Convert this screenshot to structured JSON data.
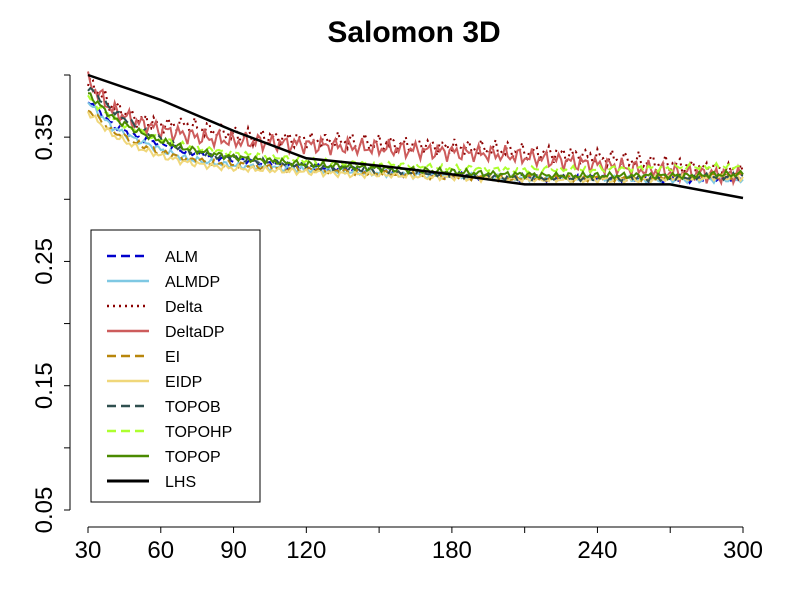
{
  "chart_data": {
    "type": "line",
    "title": "Salomon 3D",
    "xlabel": "",
    "ylabel": "",
    "xlim": [
      30,
      300
    ],
    "ylim": [
      0.05,
      0.4
    ],
    "x_ticks": [
      30,
      60,
      90,
      120,
      150,
      180,
      210,
      240,
      270,
      300
    ],
    "x_tick_labels": [
      "30",
      "60",
      "90",
      "120",
      "",
      "180",
      "",
      "240",
      "",
      "300"
    ],
    "y_ticks": [
      0.05,
      0.1,
      0.15,
      0.2,
      0.25,
      0.3,
      0.35,
      0.4
    ],
    "y_tick_labels": [
      "0.05",
      "",
      "0.15",
      "",
      "0.25",
      "",
      "0.35",
      ""
    ],
    "grid": false,
    "legend_position": "bottom-left",
    "series": [
      {
        "name": "ALM",
        "color": "#0000cc",
        "dash": "dashed",
        "x": [
          30,
          40,
          50,
          60,
          70,
          80,
          90,
          100,
          110,
          120,
          130,
          140,
          150,
          160,
          170,
          180,
          190,
          200,
          210,
          220,
          230,
          240,
          250,
          260,
          270,
          280,
          290,
          300
        ],
        "y": [
          0.38,
          0.36,
          0.35,
          0.345,
          0.338,
          0.335,
          0.332,
          0.33,
          0.328,
          0.326,
          0.325,
          0.323,
          0.322,
          0.321,
          0.32,
          0.319,
          0.318,
          0.318,
          0.317,
          0.317,
          0.317,
          0.317,
          0.316,
          0.316,
          0.316,
          0.316,
          0.317,
          0.317
        ]
      },
      {
        "name": "ALMDP",
        "color": "#7ec8e3",
        "dash": "solid",
        "x": [
          30,
          40,
          50,
          60,
          70,
          80,
          90,
          100,
          110,
          120,
          130,
          140,
          150,
          160,
          170,
          180,
          190,
          200,
          210,
          220,
          230,
          240,
          250,
          260,
          270,
          280,
          290,
          300
        ],
        "y": [
          0.378,
          0.358,
          0.348,
          0.34,
          0.333,
          0.33,
          0.327,
          0.326,
          0.325,
          0.324,
          0.323,
          0.322,
          0.321,
          0.32,
          0.319,
          0.318,
          0.318,
          0.317,
          0.317,
          0.317,
          0.316,
          0.316,
          0.316,
          0.316,
          0.316,
          0.316,
          0.316,
          0.316
        ]
      },
      {
        "name": "Delta",
        "color": "#8b0000",
        "dash": "dotted",
        "x": [
          30,
          40,
          50,
          60,
          70,
          80,
          90,
          100,
          110,
          120,
          130,
          140,
          150,
          160,
          170,
          180,
          190,
          200,
          210,
          220,
          230,
          240,
          250,
          260,
          270,
          280,
          290,
          300
        ],
        "y": [
          0.395,
          0.375,
          0.365,
          0.36,
          0.36,
          0.356,
          0.352,
          0.35,
          0.349,
          0.348,
          0.347,
          0.346,
          0.345,
          0.344,
          0.343,
          0.342,
          0.341,
          0.34,
          0.338,
          0.337,
          0.336,
          0.334,
          0.332,
          0.33,
          0.328,
          0.326,
          0.324,
          0.322
        ]
      },
      {
        "name": "DeltaDP",
        "color": "#cd5c5c",
        "dash": "solid",
        "x": [
          30,
          40,
          50,
          60,
          70,
          80,
          90,
          100,
          110,
          120,
          130,
          140,
          150,
          160,
          170,
          180,
          190,
          200,
          210,
          220,
          230,
          240,
          250,
          260,
          270,
          280,
          290,
          300
        ],
        "y": [
          0.395,
          0.372,
          0.362,
          0.356,
          0.352,
          0.349,
          0.347,
          0.346,
          0.345,
          0.344,
          0.343,
          0.342,
          0.341,
          0.34,
          0.339,
          0.338,
          0.337,
          0.336,
          0.334,
          0.332,
          0.33,
          0.328,
          0.326,
          0.324,
          0.322,
          0.321,
          0.32,
          0.32
        ]
      },
      {
        "name": "EI",
        "color": "#b8860b",
        "dash": "dashed",
        "x": [
          30,
          40,
          50,
          60,
          70,
          80,
          90,
          100,
          110,
          120,
          130,
          140,
          150,
          160,
          170,
          180,
          190,
          200,
          210,
          220,
          230,
          240,
          250,
          260,
          270,
          280,
          290,
          300
        ],
        "y": [
          0.372,
          0.355,
          0.345,
          0.338,
          0.333,
          0.33,
          0.328,
          0.326,
          0.325,
          0.324,
          0.323,
          0.322,
          0.321,
          0.32,
          0.319,
          0.318,
          0.318,
          0.317,
          0.317,
          0.317,
          0.317,
          0.317,
          0.317,
          0.317,
          0.318,
          0.318,
          0.319,
          0.32
        ]
      },
      {
        "name": "EIDP",
        "color": "#f0d77a",
        "dash": "solid",
        "x": [
          30,
          40,
          50,
          60,
          70,
          80,
          90,
          100,
          110,
          120,
          130,
          140,
          150,
          160,
          170,
          180,
          190,
          200,
          210,
          220,
          230,
          240,
          250,
          260,
          270,
          280,
          290,
          300
        ],
        "y": [
          0.37,
          0.352,
          0.342,
          0.335,
          0.33,
          0.327,
          0.325,
          0.324,
          0.323,
          0.322,
          0.321,
          0.32,
          0.32,
          0.319,
          0.318,
          0.318,
          0.317,
          0.317,
          0.316,
          0.316,
          0.316,
          0.316,
          0.316,
          0.316,
          0.317,
          0.317,
          0.318,
          0.318
        ]
      },
      {
        "name": "TOPOB",
        "color": "#2f4f4f",
        "dash": "dashed",
        "x": [
          30,
          40,
          50,
          60,
          70,
          80,
          90,
          100,
          110,
          120,
          130,
          140,
          150,
          160,
          170,
          180,
          190,
          200,
          210,
          220,
          230,
          240,
          250,
          260,
          270,
          280,
          290,
          300
        ],
        "y": [
          0.39,
          0.372,
          0.358,
          0.348,
          0.34,
          0.336,
          0.333,
          0.331,
          0.329,
          0.327,
          0.326,
          0.325,
          0.324,
          0.322,
          0.321,
          0.32,
          0.319,
          0.318,
          0.318,
          0.317,
          0.317,
          0.317,
          0.317,
          0.317,
          0.317,
          0.318,
          0.318,
          0.319
        ]
      },
      {
        "name": "TOPOHP",
        "color": "#adff2f",
        "dash": "dashed",
        "x": [
          30,
          40,
          50,
          60,
          70,
          80,
          90,
          100,
          110,
          120,
          130,
          140,
          150,
          160,
          170,
          180,
          190,
          200,
          210,
          220,
          230,
          240,
          250,
          260,
          270,
          280,
          290,
          300
        ],
        "y": [
          0.382,
          0.365,
          0.355,
          0.348,
          0.343,
          0.34,
          0.337,
          0.335,
          0.333,
          0.331,
          0.33,
          0.329,
          0.328,
          0.327,
          0.326,
          0.325,
          0.325,
          0.324,
          0.324,
          0.324,
          0.324,
          0.324,
          0.325,
          0.325,
          0.325,
          0.326,
          0.326,
          0.327
        ]
      },
      {
        "name": "TOPOP",
        "color": "#4a8a00",
        "dash": "solid",
        "x": [
          30,
          40,
          50,
          60,
          70,
          80,
          90,
          100,
          110,
          120,
          130,
          140,
          150,
          160,
          170,
          180,
          190,
          200,
          210,
          220,
          230,
          240,
          250,
          260,
          270,
          280,
          290,
          300
        ],
        "y": [
          0.385,
          0.366,
          0.355,
          0.347,
          0.341,
          0.337,
          0.334,
          0.332,
          0.33,
          0.328,
          0.327,
          0.326,
          0.325,
          0.324,
          0.323,
          0.322,
          0.321,
          0.32,
          0.32,
          0.319,
          0.319,
          0.319,
          0.319,
          0.319,
          0.319,
          0.319,
          0.32,
          0.32
        ]
      },
      {
        "name": "LHS",
        "color": "#000000",
        "dash": "solid",
        "x": [
          30,
          60,
          90,
          120,
          150,
          180,
          210,
          240,
          270,
          300
        ],
        "y": [
          0.4,
          0.38,
          0.355,
          0.333,
          0.327,
          0.32,
          0.312,
          0.312,
          0.312,
          0.301
        ]
      }
    ]
  }
}
